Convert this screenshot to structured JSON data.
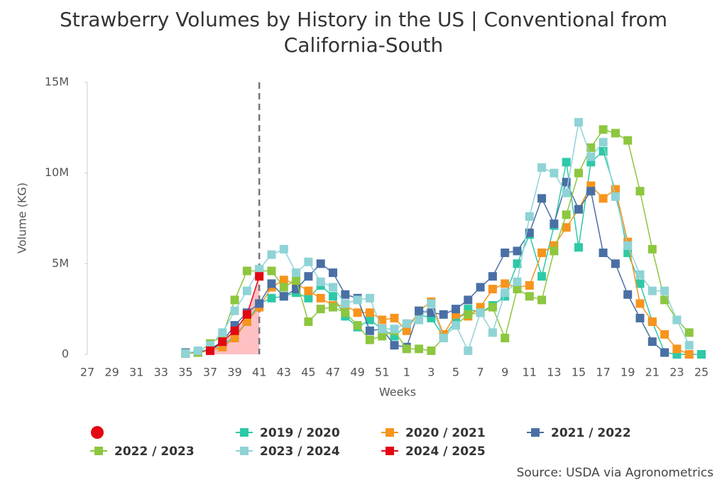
{
  "chart_data": {
    "type": "line",
    "title": "Strawberry Volumes by History in the US | Conventional from California-South",
    "x_label": "Weeks",
    "y_label": "Volume (KG)",
    "source": "Source: USDA via Agronometrics",
    "categories": [
      "27",
      null,
      "29",
      null,
      "31",
      null,
      "33",
      null,
      "35",
      null,
      "37",
      null,
      "39",
      null,
      "41",
      null,
      "43",
      null,
      "45",
      null,
      "47",
      null,
      "49",
      null,
      "51",
      null,
      "1",
      null,
      "3",
      null,
      "5",
      null,
      "7",
      null,
      "9",
      null,
      "11",
      null,
      "13",
      null,
      "15",
      null,
      "17",
      null,
      "19",
      null,
      "21",
      null,
      "23",
      null,
      "25"
    ],
    "ylim": [
      0,
      15000000
    ],
    "yticks": [
      0,
      {
        "value": 5000000,
        "label": "5M"
      },
      {
        "value": 10000000,
        "label": "10M"
      },
      {
        "value": 15000000,
        "label": "15M"
      }
    ],
    "grid": false,
    "series": [
      {
        "name": "2019 / 2020",
        "color": "#2ec9a7",
        "values": [
          null,
          null,
          null,
          null,
          null,
          null,
          null,
          null,
          50000,
          100000,
          300000,
          500000,
          1000000,
          1800000,
          2800000,
          3100000,
          3200000,
          3400000,
          3100000,
          3800000,
          3200000,
          2100000,
          1500000,
          1900000,
          1400000,
          1000000,
          1600000,
          2200000,
          2000000,
          1000000,
          1800000,
          2500000,
          2300000,
          2700000,
          3200000,
          5000000,
          6600000,
          4300000,
          7100000,
          10600000,
          5900000,
          10600000,
          11200000,
          9000000,
          5600000,
          3900000,
          1800000,
          100000,
          0,
          0,
          0
        ]
      },
      {
        "name": "2020 / 2021",
        "color": "#f7941d",
        "values": [
          null,
          null,
          null,
          null,
          null,
          null,
          null,
          null,
          50000,
          100000,
          200000,
          400000,
          900000,
          1800000,
          2600000,
          3700000,
          4100000,
          3900000,
          3500000,
          3100000,
          2700000,
          2700000,
          2300000,
          2300000,
          1900000,
          2000000,
          1300000,
          2400000,
          2900000,
          1100000,
          2200000,
          2100000,
          2600000,
          3600000,
          3900000,
          3700000,
          3800000,
          5600000,
          6000000,
          7000000,
          8000000,
          9300000,
          8600000,
          9100000,
          6200000,
          2800000,
          1800000,
          1100000,
          300000,
          0,
          null
        ]
      },
      {
        "name": "2021 / 2022",
        "color": "#4a6fa5",
        "values": [
          null,
          null,
          null,
          null,
          null,
          null,
          null,
          null,
          100000,
          100000,
          300000,
          700000,
          1600000,
          2300000,
          2800000,
          3900000,
          3200000,
          3600000,
          4300000,
          5000000,
          4500000,
          3300000,
          3100000,
          1300000,
          1400000,
          500000,
          400000,
          2400000,
          2300000,
          2200000,
          2500000,
          3000000,
          3700000,
          4300000,
          5600000,
          5700000,
          6700000,
          8600000,
          7200000,
          9500000,
          8000000,
          9000000,
          5600000,
          5000000,
          3300000,
          2000000,
          700000,
          100000,
          null,
          null,
          null
        ]
      },
      {
        "name": "2022 / 2023",
        "color": "#8dc63f",
        "values": [
          null,
          null,
          null,
          null,
          null,
          null,
          null,
          null,
          50000,
          100000,
          600000,
          1000000,
          3000000,
          4600000,
          4600000,
          4600000,
          3700000,
          4100000,
          1800000,
          2500000,
          2600000,
          2300000,
          1600000,
          800000,
          1000000,
          1300000,
          300000,
          300000,
          200000,
          900000,
          1600000,
          2200000,
          2300000,
          2600000,
          900000,
          3600000,
          3200000,
          3000000,
          5700000,
          7700000,
          10000000,
          11400000,
          12400000,
          12200000,
          11800000,
          9000000,
          5800000,
          3000000,
          1900000,
          1200000,
          null
        ]
      },
      {
        "name": "2023 / 2024",
        "color": "#8fd3d6",
        "values": [
          null,
          null,
          null,
          null,
          null,
          null,
          null,
          null,
          50000,
          200000,
          500000,
          1200000,
          2400000,
          3500000,
          4700000,
          5500000,
          5800000,
          4500000,
          5100000,
          4000000,
          3700000,
          2800000,
          3000000,
          3100000,
          1400000,
          1400000,
          1700000,
          1900000,
          2800000,
          900000,
          1600000,
          200000,
          2300000,
          1200000,
          3400000,
          4000000,
          7600000,
          10300000,
          10000000,
          8900000,
          12800000,
          10900000,
          11700000,
          8700000,
          6000000,
          4400000,
          3500000,
          3500000,
          1900000,
          500000,
          null
        ]
      },
      {
        "name": "2024 / 2025",
        "color": "#e30613",
        "values": [
          null,
          null,
          null,
          null,
          null,
          null,
          null,
          null,
          null,
          null,
          200000,
          700000,
          1300000,
          2200000,
          4300000,
          null,
          null,
          null,
          null,
          null,
          null,
          null,
          null,
          null,
          null,
          null,
          null,
          null,
          null,
          null,
          null,
          null,
          null,
          null,
          null,
          null,
          null,
          null,
          null,
          null,
          null,
          null,
          null,
          null,
          null,
          null,
          null,
          null,
          null,
          null,
          null
        ]
      }
    ]
  }
}
